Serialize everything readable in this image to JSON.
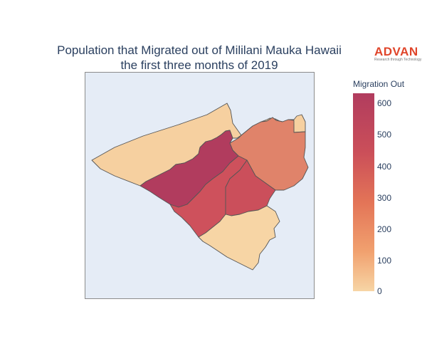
{
  "title": {
    "line1": "Population that Migrated out of Mililani Mauka Hawaii",
    "line2": "the first three months of 2019"
  },
  "logo": {
    "name": "ADVAN",
    "tagline": "Research through Technology"
  },
  "colorbar": {
    "title": "Migration Out",
    "min": 0,
    "max": 630,
    "ticks": [
      "0",
      "100",
      "200",
      "300",
      "400",
      "500",
      "600"
    ],
    "colors": [
      "#f7d5a5",
      "#f1a16f",
      "#e37457",
      "#cb4f59",
      "#b13c5e"
    ]
  },
  "map": {
    "background": "#e5ecf6",
    "border_color": "#555555",
    "regions": [
      {
        "name": "northwest",
        "value": 20,
        "fill": "#f6d0a0"
      },
      {
        "name": "central-north",
        "value": 630,
        "fill": "#b13c5e"
      },
      {
        "name": "northeast",
        "value": 340,
        "fill": "#e0836a"
      },
      {
        "name": "central-south",
        "value": 480,
        "fill": "#cb4f5b"
      },
      {
        "name": "southwest-strip",
        "value": 470,
        "fill": "#ce515c"
      },
      {
        "name": "south",
        "value": 15,
        "fill": "#f7d5a5"
      }
    ]
  }
}
